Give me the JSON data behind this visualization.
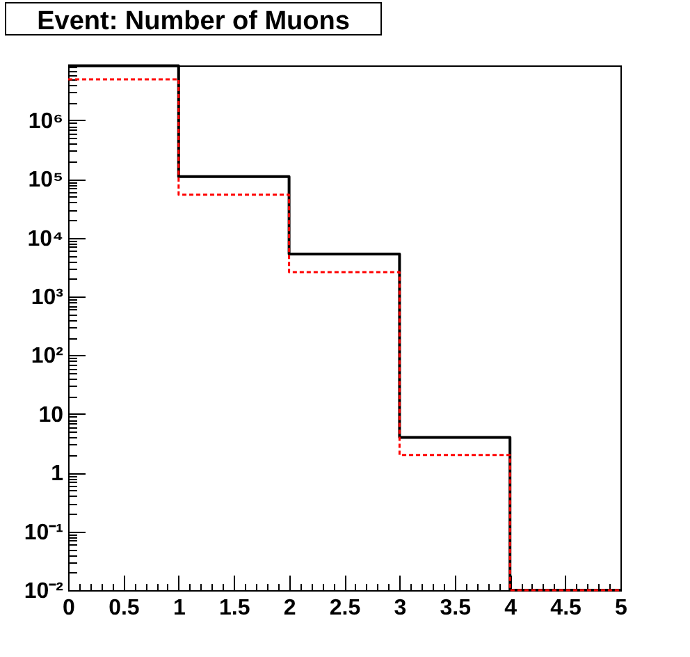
{
  "chart_data": {
    "type": "histogram",
    "title": "Event: Number of Muons",
    "bins": [
      0,
      1,
      2,
      3,
      4,
      5
    ],
    "series": [
      {
        "color": "#000000",
        "values": [
          8500000.0,
          110000.0,
          5300.0,
          4,
          0.01
        ]
      },
      {
        "color": "#ff0000",
        "line_style": "dashed",
        "values": [
          5000000.0,
          54000.0,
          2600.0,
          2,
          0.01
        ]
      }
    ],
    "log": true,
    "xlim": [
      0,
      5
    ],
    "ylim": [
      0.01,
      8600000.0
    ],
    "xticks": [
      0,
      {
        "value": 0.1,
        "label": null
      },
      {
        "value": 0.2,
        "label": null
      },
      {
        "value": 0.3,
        "label": null
      },
      {
        "value": 0.4,
        "label": null
      },
      0.5,
      {
        "value": 0.6,
        "label": null
      },
      {
        "value": 0.7,
        "label": null
      },
      {
        "value": 0.8,
        "label": null
      },
      {
        "value": 0.9,
        "label": null
      },
      1,
      {
        "value": 1.1,
        "label": null
      },
      {
        "value": 1.2,
        "label": null
      },
      {
        "value": 1.3,
        "label": null
      },
      {
        "value": 1.4,
        "label": null
      },
      1.5,
      {
        "value": 1.6,
        "label": null
      },
      {
        "value": 1.7,
        "label": null
      },
      {
        "value": 1.8,
        "label": null
      },
      {
        "value": 1.9,
        "label": null
      },
      2,
      {
        "value": 2.1,
        "label": null
      },
      {
        "value": 2.2,
        "label": null
      },
      {
        "value": 2.3,
        "label": null
      },
      {
        "value": 2.4,
        "label": null
      },
      2.5,
      {
        "value": 2.6,
        "label": null
      },
      {
        "value": 2.7,
        "label": null
      },
      {
        "value": 2.8,
        "label": null
      },
      {
        "value": 2.9,
        "label": null
      },
      3,
      {
        "value": 3.1,
        "label": null
      },
      {
        "value": 3.2,
        "label": null
      },
      {
        "value": 3.3,
        "label": null
      },
      {
        "value": 3.4,
        "label": null
      },
      3.5,
      {
        "value": 3.6,
        "label": null
      },
      {
        "value": 3.7,
        "label": null
      },
      {
        "value": 3.8,
        "label": null
      },
      {
        "value": 3.9,
        "label": null
      },
      4,
      {
        "value": 4.1,
        "label": null
      },
      {
        "value": 4.2,
        "label": null
      },
      {
        "value": 4.3,
        "label": null
      },
      {
        "value": 4.4,
        "label": null
      },
      4.5,
      {
        "value": 4.6,
        "label": null
      },
      {
        "value": 4.7,
        "label": null
      },
      {
        "value": 4.8,
        "label": null
      },
      {
        "value": 4.9,
        "label": null
      },
      5
    ],
    "yticks": [
      {
        "value": 0.01,
        "label": "10⁻²"
      },
      {
        "value": 0.02,
        "label": null
      },
      {
        "value": 0.03,
        "label": null
      },
      {
        "value": 0.04,
        "label": null
      },
      {
        "value": 0.05,
        "label": null
      },
      {
        "value": 0.06,
        "label": null
      },
      {
        "value": 0.07,
        "label": null
      },
      {
        "value": 0.08,
        "label": null
      },
      {
        "value": 0.09,
        "label": null
      },
      {
        "value": 0.1,
        "label": "10⁻¹"
      },
      {
        "value": 0.2,
        "label": null
      },
      {
        "value": 0.3,
        "label": null
      },
      {
        "value": 0.4,
        "label": null
      },
      {
        "value": 0.5,
        "label": null
      },
      {
        "value": 0.6,
        "label": null
      },
      {
        "value": 0.7,
        "label": null
      },
      {
        "value": 0.8,
        "label": null
      },
      {
        "value": 0.9,
        "label": null
      },
      1,
      {
        "value": 2,
        "label": null
      },
      {
        "value": 3,
        "label": null
      },
      {
        "value": 4,
        "label": null
      },
      {
        "value": 5,
        "label": null
      },
      {
        "value": 6,
        "label": null
      },
      {
        "value": 7,
        "label": null
      },
      {
        "value": 8,
        "label": null
      },
      {
        "value": 9,
        "label": null
      },
      10,
      {
        "value": 20,
        "label": null
      },
      {
        "value": 30,
        "label": null
      },
      {
        "value": 40,
        "label": null
      },
      {
        "value": 50,
        "label": null
      },
      {
        "value": 60,
        "label": null
      },
      {
        "value": 70,
        "label": null
      },
      {
        "value": 80,
        "label": null
      },
      {
        "value": 90,
        "label": null
      },
      {
        "value": 100,
        "label": "10²"
      },
      {
        "value": 200,
        "label": null
      },
      {
        "value": 300,
        "label": null
      },
      {
        "value": 400,
        "label": null
      },
      {
        "value": 500,
        "label": null
      },
      {
        "value": 600,
        "label": null
      },
      {
        "value": 700,
        "label": null
      },
      {
        "value": 800,
        "label": null
      },
      {
        "value": 900,
        "label": null
      },
      {
        "value": 1000,
        "label": "10³"
      },
      {
        "value": 2000,
        "label": null
      },
      {
        "value": 3000,
        "label": null
      },
      {
        "value": 4000,
        "label": null
      },
      {
        "value": 5000,
        "label": null
      },
      {
        "value": 6000,
        "label": null
      },
      {
        "value": 7000,
        "label": null
      },
      {
        "value": 8000,
        "label": null
      },
      {
        "value": 9000,
        "label": null
      },
      {
        "value": 10000,
        "label": "10⁴"
      },
      {
        "value": 20000,
        "label": null
      },
      {
        "value": 30000,
        "label": null
      },
      {
        "value": 40000,
        "label": null
      },
      {
        "value": 50000,
        "label": null
      },
      {
        "value": 60000,
        "label": null
      },
      {
        "value": 70000,
        "label": null
      },
      {
        "value": 80000,
        "label": null
      },
      {
        "value": 90000,
        "label": null
      },
      {
        "value": 100000,
        "label": "10⁵"
      },
      {
        "value": 200000,
        "label": null
      },
      {
        "value": 300000,
        "label": null
      },
      {
        "value": 400000,
        "label": null
      },
      {
        "value": 500000,
        "label": null
      },
      {
        "value": 600000,
        "label": null
      },
      {
        "value": 700000,
        "label": null
      },
      {
        "value": 800000,
        "label": null
      },
      {
        "value": 900000,
        "label": null
      },
      {
        "value": 1000000,
        "label": "10⁶"
      },
      {
        "value": 2000000,
        "label": null
      },
      {
        "value": 3000000,
        "label": null
      },
      {
        "value": 4000000,
        "label": null
      },
      {
        "value": 5000000,
        "label": null
      },
      {
        "value": 6000000,
        "label": null
      },
      {
        "value": 7000000,
        "label": null
      },
      {
        "value": 8000000,
        "label": null
      }
    ]
  }
}
